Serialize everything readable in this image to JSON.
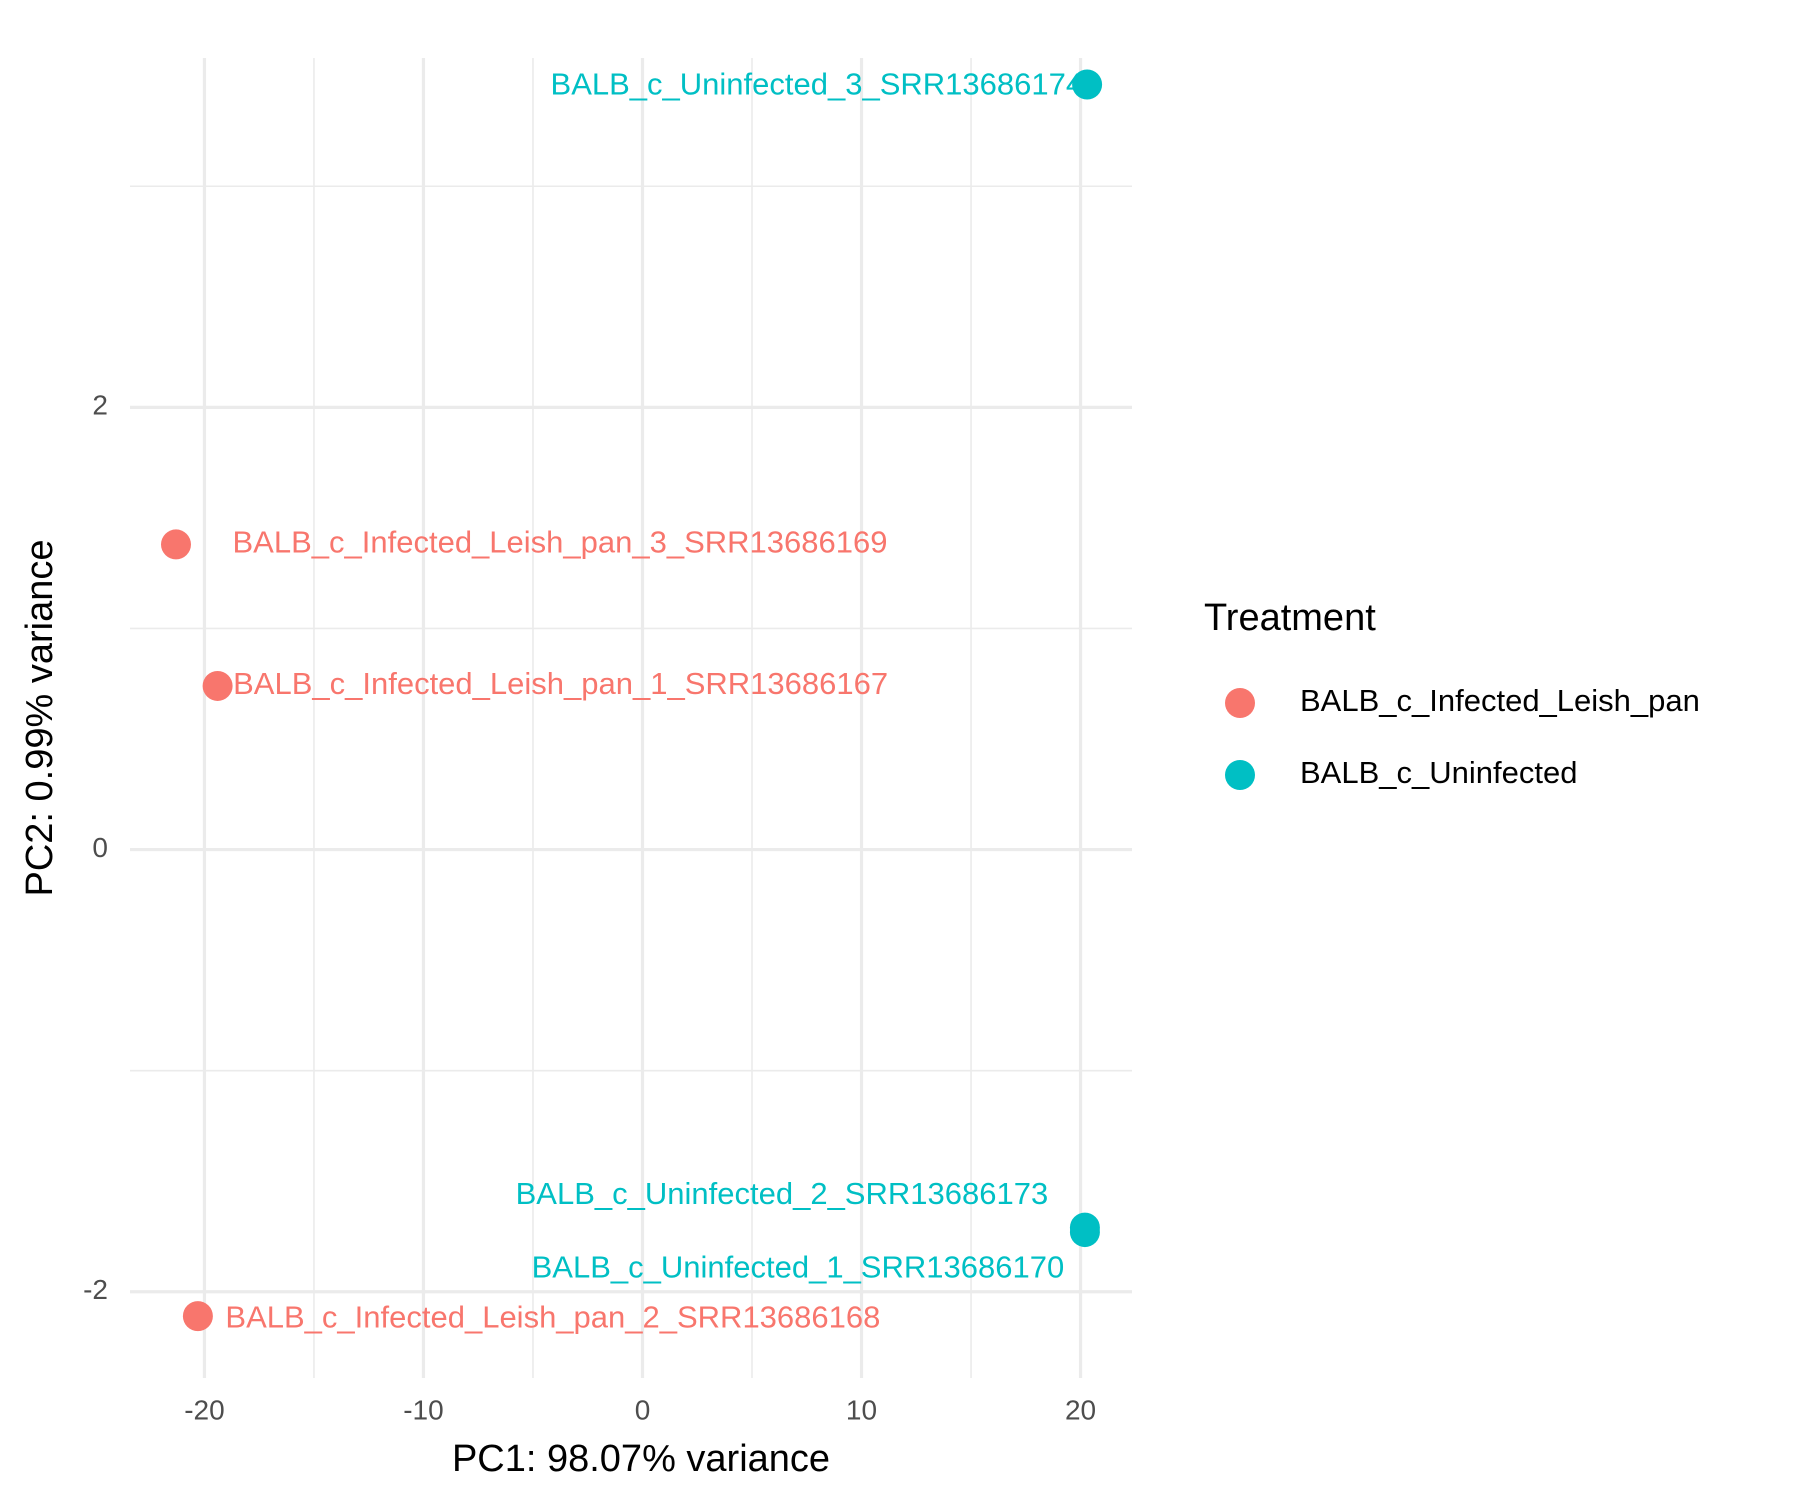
{
  "chart_data": {
    "type": "scatter",
    "xlabel": "PC1: 98.07% variance",
    "ylabel": "PC2: 0.99% variance",
    "legend_title": "Treatment",
    "legend_position": "right",
    "grid": true,
    "xlim": [
      -23.4,
      22.35
    ],
    "ylim": [
      -2.39,
      3.58
    ],
    "xticks": [
      -20,
      -10,
      0,
      10,
      20
    ],
    "yticks": [
      -2,
      0,
      2
    ],
    "x_minor_grid": [
      -15,
      -5,
      5,
      15
    ],
    "y_minor_grid": [
      -1,
      1,
      3
    ],
    "series": [
      {
        "name": "BALB_c_Infected_Leish_pan",
        "color": "#F8766D",
        "x": [
          -19.4,
          -20.3,
          -21.3
        ],
        "values": [
          0.74,
          -2.11,
          1.38
        ],
        "labels": [
          "BALB_c_Infected_Leish_pan_1_SRR13686167",
          "BALB_c_Infected_Leish_pan_2_SRR13686168",
          "BALB_c_Infected_Leish_pan_3_SRR13686169"
        ]
      },
      {
        "name": "BALB_c_Uninfected",
        "color": "#00BFC4",
        "x": [
          20.2,
          20.2,
          20.3
        ],
        "values": [
          -1.73,
          -1.71,
          3.46
        ],
        "labels": [
          "BALB_c_Uninfected_1_SRR13686170",
          "BALB_c_Uninfected_2_SRR13686173",
          "BALB_c_Uninfected_3_SRR13686174"
        ]
      }
    ]
  }
}
